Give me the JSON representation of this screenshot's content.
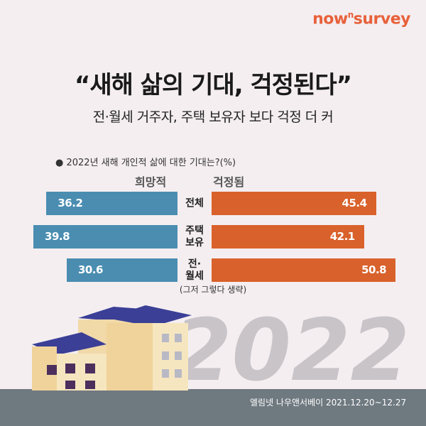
{
  "brand": {
    "prefix": "now",
    "sup": "n",
    "suffix": "survey"
  },
  "chart_data": {
    "type": "butterfly-bar",
    "title": "“새해 삶의 기대, 걱정된다”",
    "subtitle": "전·월세 거주자, 주택 보유자 보다 걱정 더 커",
    "question": "2022년 새해 개인적 삶에 대한 기대는?(%)",
    "categories": [
      "전체",
      "주택 보유",
      "전·월세"
    ],
    "series": [
      {
        "name": "희망적",
        "color": "#4a8db1",
        "values": [
          36.2,
          39.8,
          30.6
        ]
      },
      {
        "name": "걱정됨",
        "color": "#d9612b",
        "values": [
          45.4,
          42.1,
          50.8
        ]
      }
    ],
    "note": "(그저 그렇다 생략)"
  },
  "decoration_text": "2022",
  "source": "엘림넷 나우앤서베이 2021.12.20~12.27"
}
